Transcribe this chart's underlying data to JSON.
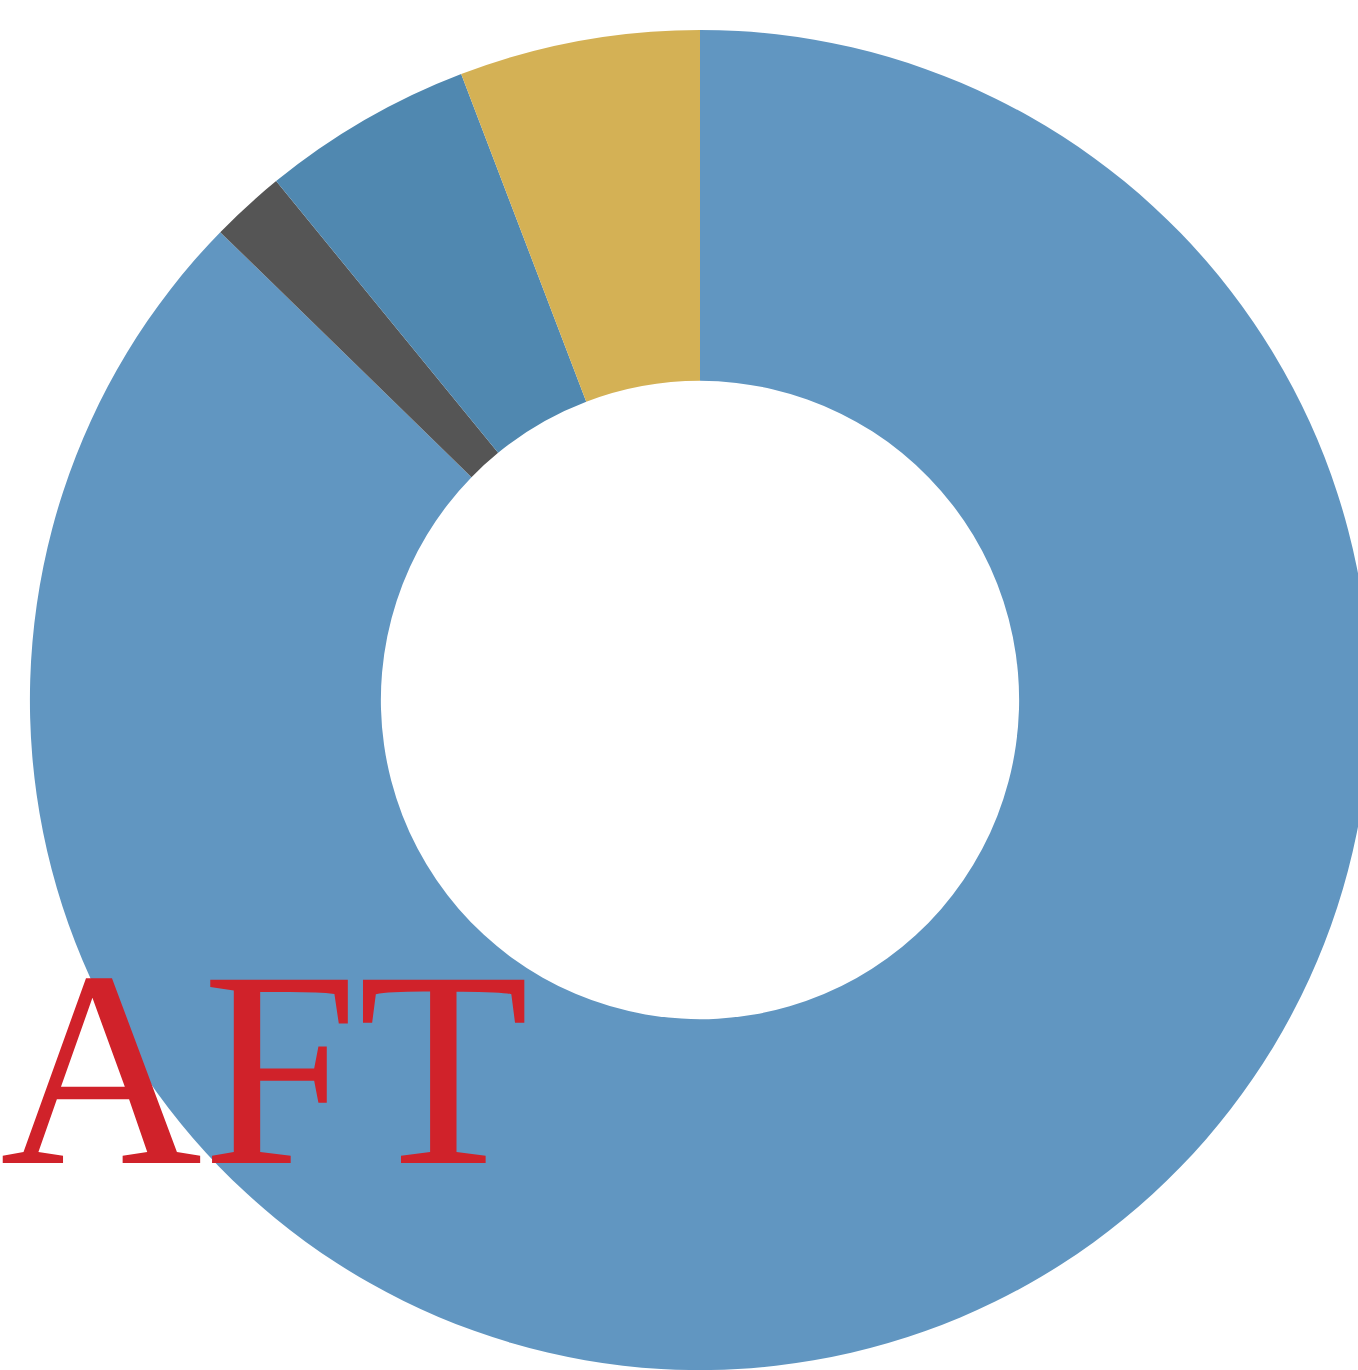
{
  "chart_data": {
    "type": "donut",
    "categories": [
      null,
      null,
      null,
      null
    ],
    "values": [
      87.3,
      1.8,
      5.1,
      5.8
    ],
    "colors": [
      "#6196c1",
      "#555555",
      "#5088b0",
      "#d4b155"
    ],
    "annotations": [
      "AFT"
    ]
  }
}
